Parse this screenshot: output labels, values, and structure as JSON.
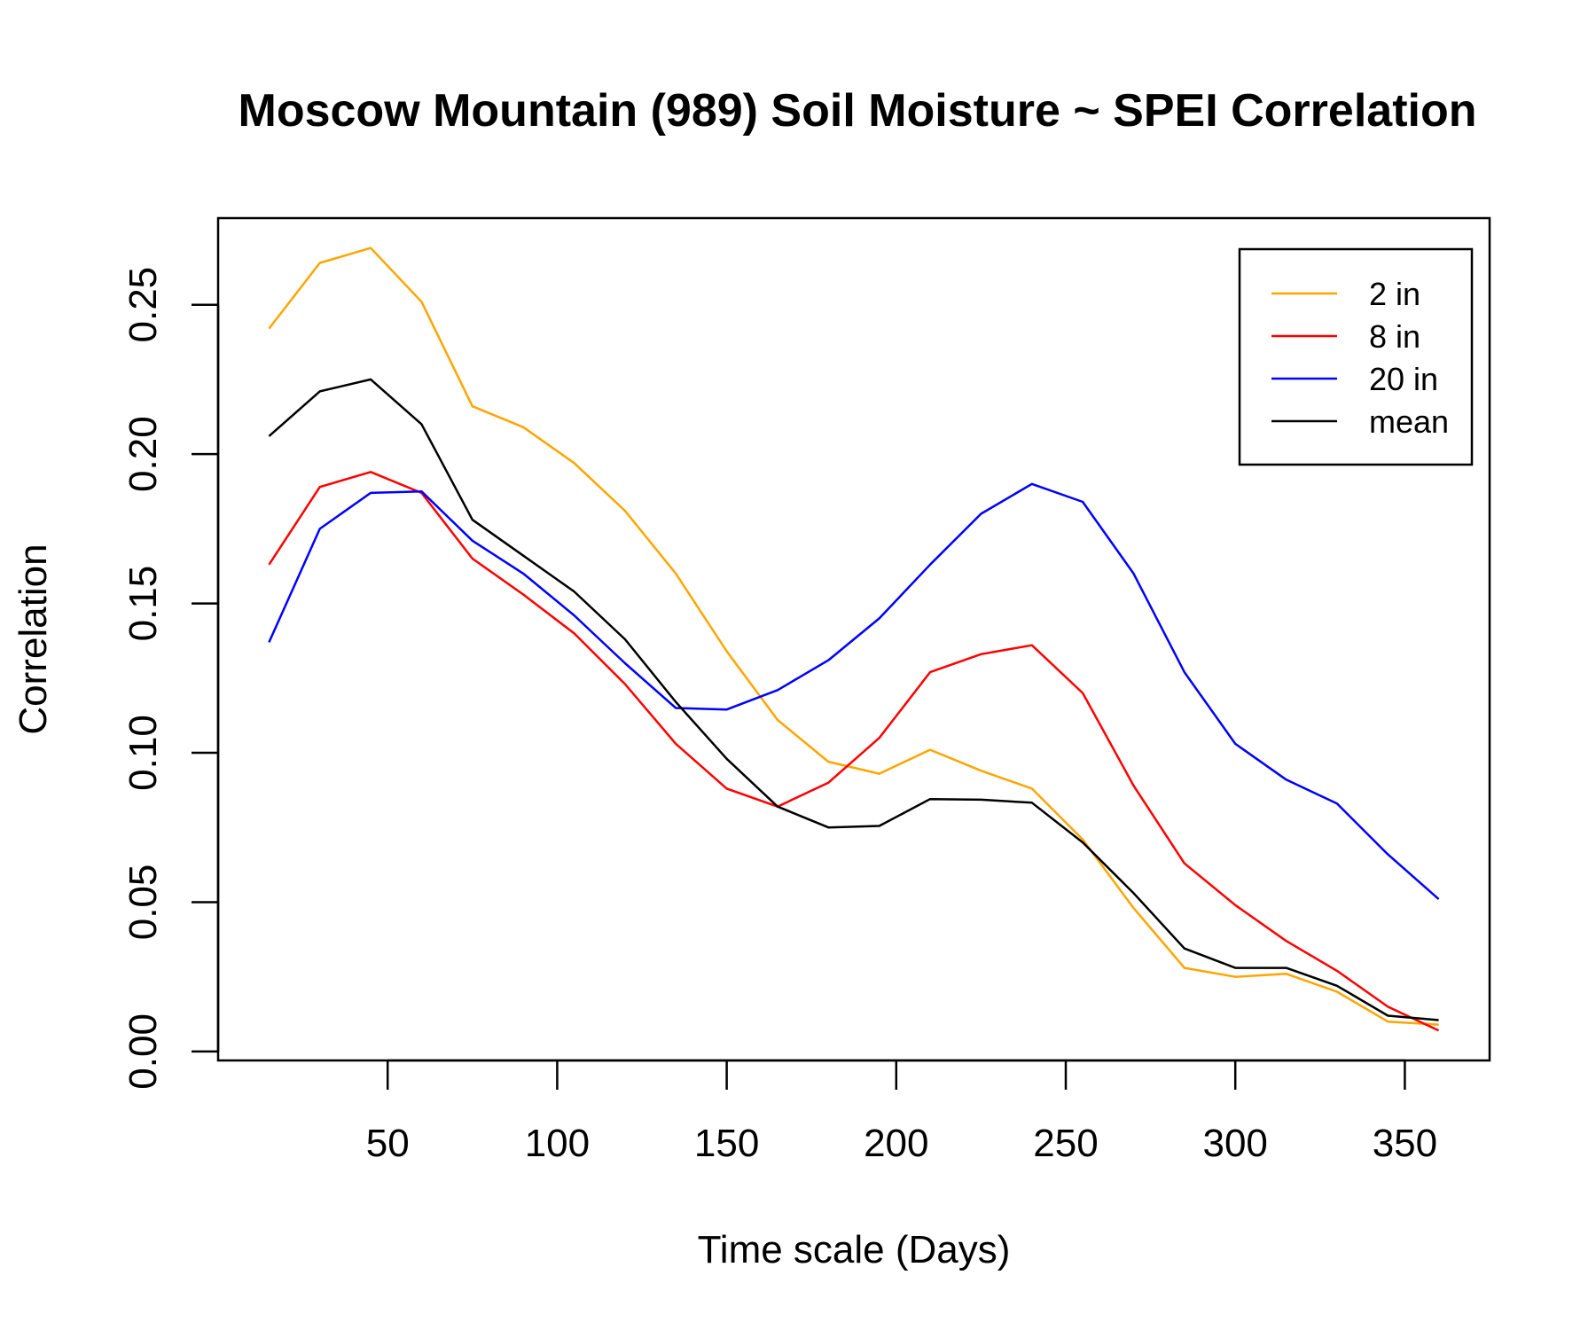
{
  "chart_data": {
    "type": "line",
    "title": "Moscow Mountain (989) Soil Moisture ~ SPEI Correlation",
    "xlabel": "Time scale (Days)",
    "ylabel": "Correlation",
    "xlim": [
      0,
      375
    ],
    "ylim": [
      -0.003,
      0.279
    ],
    "x_ticks": [
      50,
      100,
      150,
      200,
      250,
      300,
      350
    ],
    "x_tick_labels": [
      "50",
      "100",
      "150",
      "200",
      "250",
      "300",
      "350"
    ],
    "y_ticks": [
      0,
      0.05,
      0.1,
      0.15,
      0.2,
      0.25
    ],
    "y_tick_labels": [
      "0.00",
      "0.05",
      "0.10",
      "0.15",
      "0.20",
      "0.25"
    ],
    "grid": false,
    "legend_position": "top-right",
    "x": [
      15,
      30,
      45,
      60,
      75,
      90,
      105,
      120,
      135,
      150,
      165,
      180,
      195,
      210,
      225,
      240,
      255,
      270,
      285,
      300,
      315,
      330,
      345,
      360
    ],
    "series": [
      {
        "name": "2 in",
        "color": "#FFA500",
        "values": [
          0.242,
          0.264,
          0.269,
          0.251,
          0.216,
          0.209,
          0.197,
          0.181,
          0.16,
          0.134,
          0.111,
          0.097,
          0.093,
          0.101,
          0.094,
          0.088,
          0.071,
          0.048,
          0.028,
          0.025,
          0.026,
          0.02,
          0.01,
          0.009
        ]
      },
      {
        "name": "8 in",
        "color": "#FF0000",
        "values": [
          0.163,
          0.189,
          0.194,
          0.187,
          0.165,
          0.153,
          0.14,
          0.123,
          0.103,
          0.088,
          0.082,
          0.09,
          0.105,
          0.127,
          0.133,
          0.136,
          0.12,
          0.089,
          0.063,
          0.049,
          0.037,
          0.027,
          0.015,
          0.007
        ]
      },
      {
        "name": "20 in",
        "color": "#0000FF",
        "values": [
          0.137,
          0.175,
          0.187,
          0.1875,
          0.171,
          0.16,
          0.146,
          0.13,
          0.115,
          0.1145,
          0.121,
          0.131,
          0.145,
          0.163,
          0.18,
          0.19,
          0.184,
          0.16,
          0.127,
          0.103,
          0.091,
          0.083,
          0.066,
          0.051
        ]
      },
      {
        "name": "mean",
        "color": "#000000",
        "values": [
          0.206,
          0.221,
          0.225,
          0.21,
          0.178,
          0.166,
          0.154,
          0.138,
          0.117,
          0.098,
          0.082,
          0.075,
          0.0755,
          0.0845,
          0.0843,
          0.0833,
          0.07,
          0.053,
          0.0345,
          0.028,
          0.028,
          0.022,
          0.012,
          0.0105
        ]
      }
    ]
  }
}
